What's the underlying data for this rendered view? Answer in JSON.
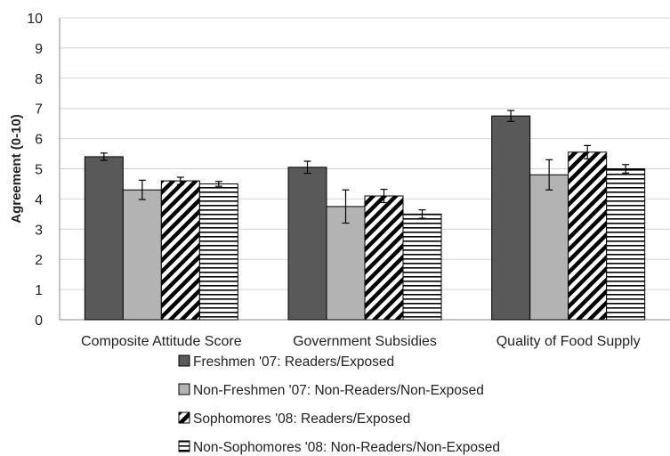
{
  "chart_data": {
    "type": "bar",
    "title": "",
    "xlabel": "",
    "ylabel": "Agreement (0-10)",
    "ylim": [
      0,
      10
    ],
    "yticks": [
      0,
      1,
      2,
      3,
      4,
      5,
      6,
      7,
      8,
      9,
      10
    ],
    "grid": "horizontal",
    "legend_position": "bottom",
    "categories": [
      "Composite Attitude Score",
      "Government Subsidies",
      "Quality of Food Supply"
    ],
    "series": [
      {
        "name": "Freshmen '07: Readers/Exposed",
        "pattern": "solid-dark",
        "color": "#595959",
        "values": [
          5.4,
          5.05,
          6.75
        ],
        "errors": [
          0.12,
          0.2,
          0.18
        ]
      },
      {
        "name": "Non-Freshmen '07: Non-Readers/Non-Exposed",
        "pattern": "solid-light",
        "color": "#b3b3b3",
        "values": [
          4.3,
          3.75,
          4.8
        ],
        "errors": [
          0.32,
          0.55,
          0.5
        ]
      },
      {
        "name": "Sophomores '08: Readers/Exposed",
        "pattern": "diagonal",
        "color": "#000000",
        "values": [
          4.6,
          4.1,
          5.55
        ],
        "errors": [
          0.12,
          0.22,
          0.22
        ]
      },
      {
        "name": "Non-Sophomores '08: Non-Readers/Non-Exposed",
        "pattern": "horizontal",
        "color": "#000000",
        "values": [
          4.5,
          3.5,
          5.0
        ],
        "errors": [
          0.08,
          0.14,
          0.14
        ]
      }
    ]
  }
}
